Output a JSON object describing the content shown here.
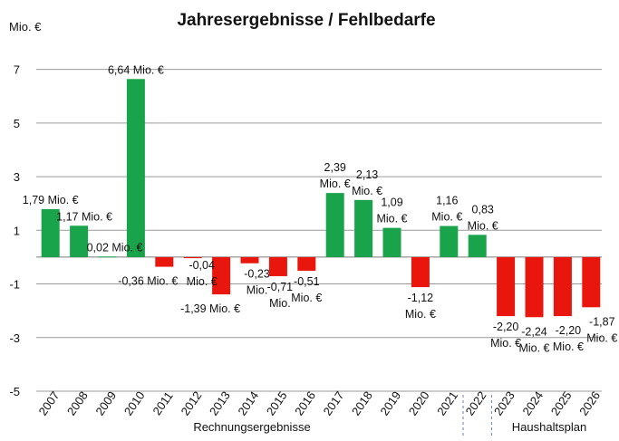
{
  "chart_data": {
    "type": "bar",
    "title": "Jahresergebnisse  / Fehlbedarfe",
    "ylabel": "Mio. €",
    "ylim": [
      -5,
      8
    ],
    "yticks": [
      "7",
      "5",
      "3",
      "1",
      "-1",
      "-3",
      "-5"
    ],
    "ytick_values": [
      7,
      5,
      3,
      1,
      -1,
      -3,
      -5
    ],
    "grid": true,
    "categories": [
      "2007",
      "2008",
      "2009",
      "2010",
      "2011",
      "2012",
      "2013",
      "2014",
      "2015",
      "2016",
      "2017",
      "2018",
      "2019",
      "2020",
      "2021",
      "2022",
      "2023",
      "2024",
      "2025",
      "2026"
    ],
    "values": [
      1.79,
      1.17,
      0.02,
      6.64,
      -0.36,
      -0.04,
      -1.39,
      -0.23,
      -0.71,
      -0.51,
      2.39,
      2.13,
      1.09,
      -1.12,
      1.16,
      0.83,
      -2.2,
      -2.24,
      -2.2,
      -1.87
    ],
    "data_labels": [
      [
        "1,79 Mio. €"
      ],
      [
        "1,17 Mio. €"
      ],
      [
        "0,02 Mio. €"
      ],
      [
        "6,64 Mio. €"
      ],
      [
        "-0,36 Mio. €"
      ],
      [
        "-0,04",
        "Mio. €"
      ],
      [
        "-1,39 Mio. €"
      ],
      [
        "-0,23",
        "Mio."
      ],
      [
        "-0,71",
        "Mio."
      ],
      [
        "-0,51",
        "Mio. €"
      ],
      [
        "2,39",
        "Mio. €"
      ],
      [
        "2,13",
        "Mio. €"
      ],
      [
        "1,09",
        "Mio. €"
      ],
      [
        "-1,12",
        "Mio. €"
      ],
      [
        "1,16",
        "Mio. €"
      ],
      [
        "0,83",
        "Mio. €"
      ],
      [
        "-2,20",
        "Mio. €"
      ],
      [
        "-2,24",
        "Mio. €"
      ],
      [
        "-2,20",
        "Mio. €"
      ],
      [
        "-1,87",
        "Mio. €"
      ]
    ],
    "group_labels": [
      "Rechnungsergebnisse",
      "Haushaltsplan"
    ],
    "colors": {
      "positive": "#19a34a",
      "negative": "#e8160c",
      "grid": "#9a9a9a",
      "text": "#111111"
    }
  }
}
